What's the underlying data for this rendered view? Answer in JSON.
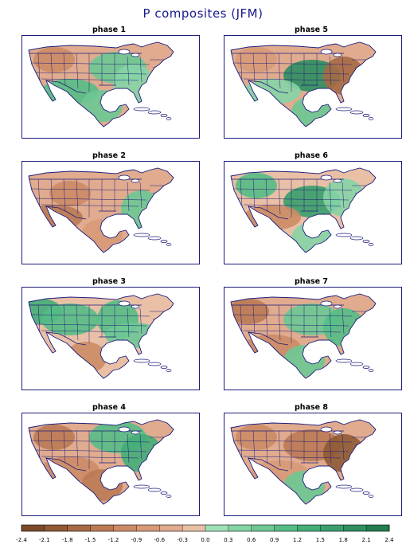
{
  "title": "P composites (JFM)",
  "colors": {
    "ocean": "#ffffff",
    "coast": "#1c1c7c",
    "bins": [
      "#7a4c2a",
      "#8f5a35",
      "#a66a45",
      "#bb7a55",
      "#cc8b66",
      "#d89a78",
      "#e0ab8e",
      "#e9c0a6",
      "#9fe0b8",
      "#86d4a6",
      "#6dc895",
      "#55bc86",
      "#44ad78",
      "#399f6d",
      "#2e8f60",
      "#247c52"
    ]
  },
  "panels": [
    {
      "label": "phase 1",
      "tone": "mixed-dry"
    },
    {
      "label": "phase 2",
      "tone": "dry"
    },
    {
      "label": "phase 3",
      "tone": "wet-west"
    },
    {
      "label": "phase 4",
      "tone": "dry-east-wet"
    },
    {
      "label": "phase 5",
      "tone": "wet-south-dry-east"
    },
    {
      "label": "phase 6",
      "tone": "wet"
    },
    {
      "label": "phase 7",
      "tone": "dry-west"
    },
    {
      "label": "phase 8",
      "tone": "dry-east"
    }
  ],
  "colorbar": {
    "ticks": [
      "-2.4",
      "-2.1",
      "-1.8",
      "-1.5",
      "-1.2",
      "-0.9",
      "-0.6",
      "-0.3",
      "0.0",
      "0.3",
      "0.6",
      "0.9",
      "1.2",
      "1.5",
      "1.8",
      "2.1",
      "2.4"
    ]
  }
}
